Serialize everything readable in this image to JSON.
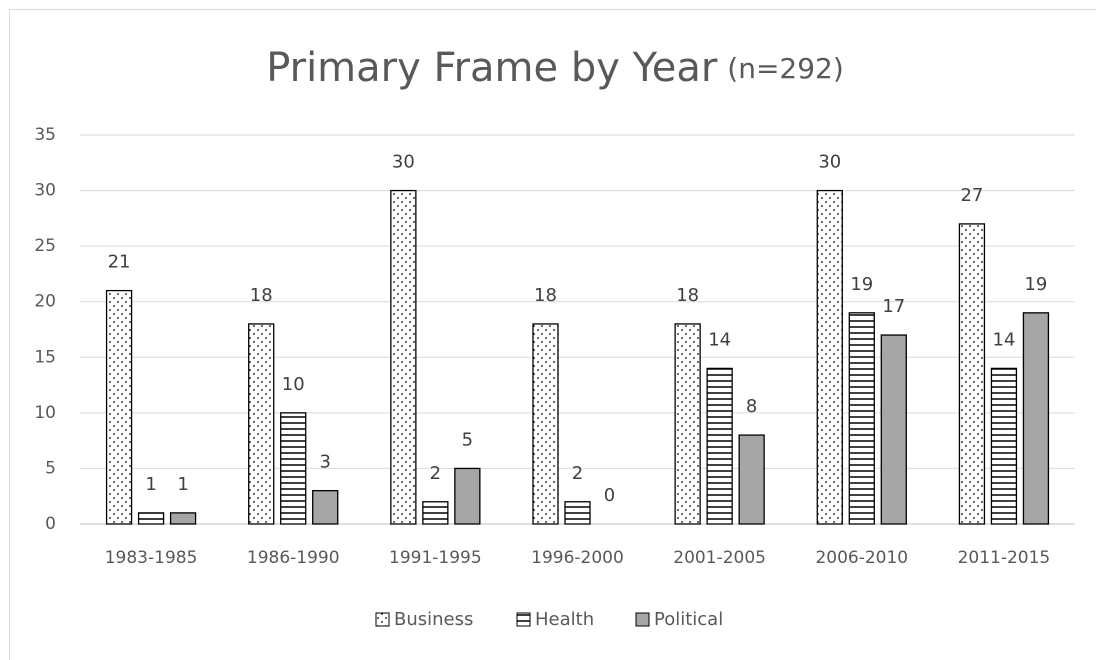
{
  "chart_data": {
    "type": "bar",
    "title": "Primary Frame by Year",
    "subtitle": "(n=292)",
    "categories": [
      "1983-1985",
      "1986-1990",
      "1991-1995",
      "1996-2000",
      "2001-2005",
      "2006-2010",
      "2011-2015"
    ],
    "series": [
      {
        "name": "Business",
        "color": "#ffffff",
        "pattern": "dots",
        "values": [
          21,
          18,
          30,
          18,
          18,
          30,
          27
        ]
      },
      {
        "name": "Health",
        "color": "#ffffff",
        "pattern": "hlines",
        "values": [
          1,
          10,
          2,
          2,
          14,
          19,
          14
        ]
      },
      {
        "name": "Political",
        "color": "#a6a6a6",
        "pattern": "solid",
        "values": [
          1,
          3,
          5,
          0,
          8,
          17,
          19
        ]
      }
    ],
    "ylim": [
      0,
      35
    ],
    "yticks": [
      0,
      5,
      10,
      15,
      20,
      25,
      30,
      35
    ],
    "grid": true,
    "legend": "bottom"
  }
}
